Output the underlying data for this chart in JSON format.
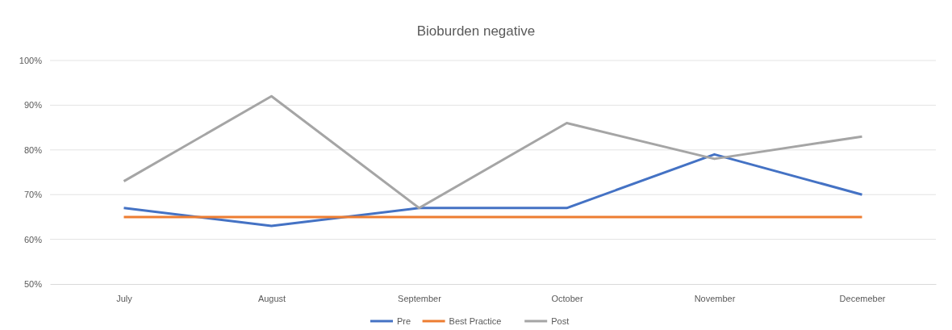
{
  "chart_data": {
    "type": "line",
    "title": "Bioburden negative",
    "categories": [
      "July",
      "August",
      "September",
      "October",
      "November",
      "Decemeber"
    ],
    "series": [
      {
        "name": "Pre",
        "color": "#4472c4",
        "values": [
          67,
          63,
          67,
          67,
          79,
          70
        ]
      },
      {
        "name": "Best Practice",
        "color": "#ed7d31",
        "values": [
          65,
          65,
          65,
          65,
          65,
          65
        ]
      },
      {
        "name": "Post",
        "color": "#a5a5a5",
        "values": [
          73,
          92,
          67,
          86,
          78,
          83
        ]
      }
    ],
    "ylim": [
      50,
      100
    ],
    "yticks": [
      {
        "value": 50,
        "label": "50%"
      },
      {
        "value": 60,
        "label": "60%"
      },
      {
        "value": 70,
        "label": "70%"
      },
      {
        "value": 80,
        "label": "80%"
      },
      {
        "value": 90,
        "label": "90%"
      },
      {
        "value": 100,
        "label": "100%"
      }
    ],
    "grid": "y",
    "legend": "bottom",
    "marker": "none",
    "line_style": "solid"
  }
}
